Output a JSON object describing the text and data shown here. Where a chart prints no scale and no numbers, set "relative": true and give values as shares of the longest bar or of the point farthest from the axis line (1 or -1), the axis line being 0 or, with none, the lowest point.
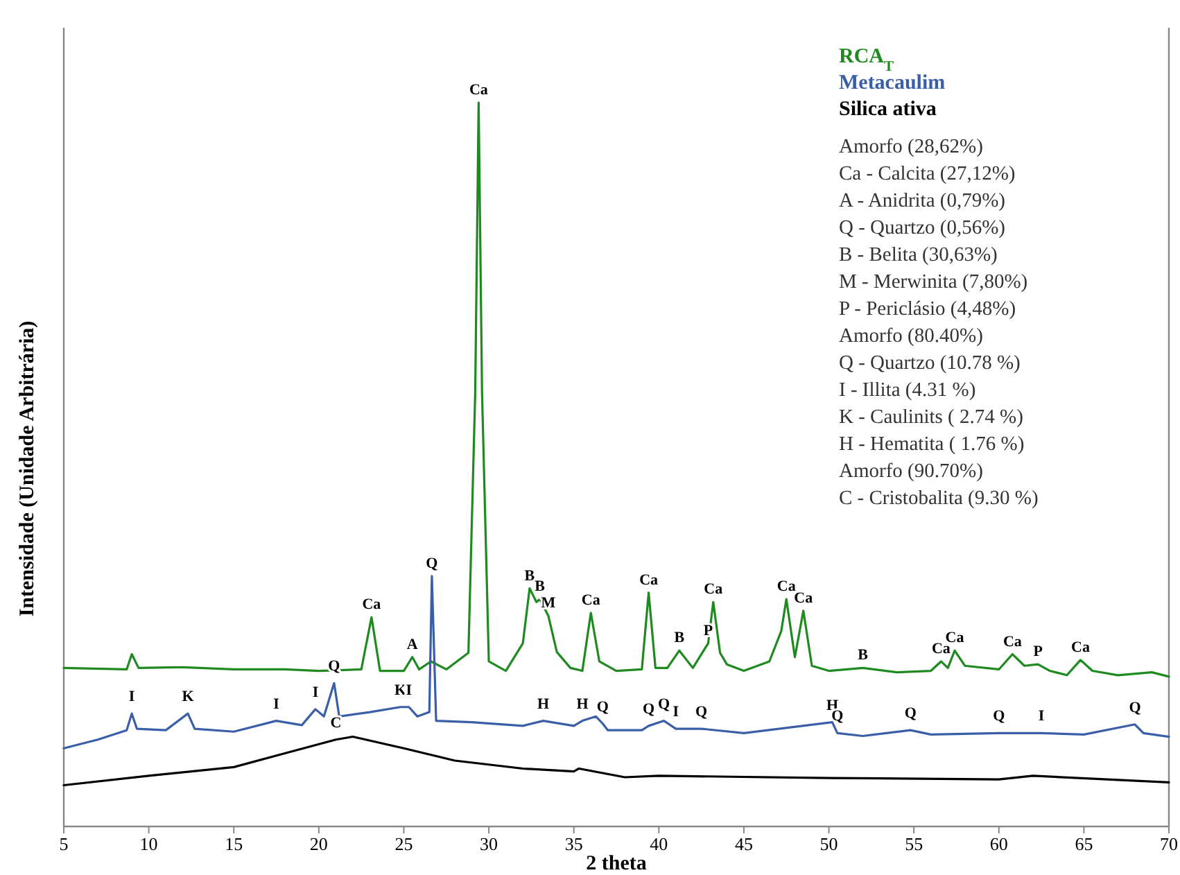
{
  "chart_data": {
    "type": "line",
    "relative": true,
    "xlabel": "2 theta",
    "ylabel": "Intensidade (Unidade Arbitrária)",
    "xlim": [
      5,
      70
    ],
    "xticks": [
      5,
      10,
      15,
      20,
      25,
      30,
      35,
      40,
      45,
      50,
      55,
      60,
      65,
      70
    ],
    "grid": false,
    "legend": "top right",
    "marker": "none",
    "line_style": "solid",
    "series": [
      {
        "name": "RCA$_{T}$",
        "color": "#1f8a1f",
        "x": [
          5,
          8.7,
          9.0,
          9.4,
          12,
          15,
          18,
          20,
          22.5,
          23.1,
          23.6,
          25,
          25.5,
          25.9,
          26.6,
          27.5,
          28.8,
          29.2,
          29.4,
          29.6,
          30,
          31,
          32,
          32.4,
          32.8,
          33,
          33.5,
          34,
          34.8,
          35.5,
          36.0,
          36.5,
          37.5,
          39,
          39.4,
          39.8,
          40.5,
          41.2,
          42,
          42.9,
          43.2,
          43.6,
          44,
          45,
          46.5,
          47.2,
          47.5,
          48,
          48.5,
          49,
          50,
          52,
          54,
          56,
          56.6,
          57,
          57.4,
          58,
          60,
          60.8,
          61.5,
          62.3,
          63,
          64,
          64.8,
          65.5,
          67,
          69,
          70
        ],
        "values": [
          0.219,
          0.217,
          0.238,
          0.219,
          0.22,
          0.217,
          0.217,
          0.215,
          0.217,
          0.289,
          0.215,
          0.215,
          0.234,
          0.217,
          0.228,
          0.217,
          0.24,
          0.6,
          1,
          0.6,
          0.228,
          0.215,
          0.253,
          0.329,
          0.31,
          0.314,
          0.291,
          0.241,
          0.219,
          0.215,
          0.295,
          0.228,
          0.215,
          0.217,
          0.323,
          0.219,
          0.219,
          0.243,
          0.219,
          0.253,
          0.31,
          0.24,
          0.224,
          0.215,
          0.228,
          0.27,
          0.314,
          0.234,
          0.298,
          0.222,
          0.215,
          0.219,
          0.213,
          0.215,
          0.228,
          0.219,
          0.243,
          0.222,
          0.217,
          0.238,
          0.222,
          0.224,
          0.215,
          0.209,
          0.23,
          0.215,
          0.209,
          0.213,
          0.207
        ]
      },
      {
        "name": "Metacaulim",
        "color": "#3a5fa8",
        "x": [
          5,
          7,
          8.7,
          9.0,
          9.3,
          11,
          12.3,
          12.7,
          15,
          17.5,
          19,
          19.8,
          20.3,
          20.9,
          21.2,
          23,
          24.8,
          25.3,
          25.8,
          26.5,
          26.65,
          26.9,
          29,
          32,
          33.2,
          35,
          35.5,
          36.3,
          36.7,
          37,
          39,
          39.4,
          40.3,
          41,
          42.5,
          45,
          50.2,
          50.5,
          52,
          54.8,
          56,
          60,
          62.5,
          65,
          68,
          68.5,
          70
        ],
        "values": [
          0.108,
          0.12,
          0.133,
          0.156,
          0.135,
          0.133,
          0.156,
          0.135,
          0.131,
          0.146,
          0.14,
          0.162,
          0.152,
          0.198,
          0.152,
          0.158,
          0.165,
          0.165,
          0.152,
          0.158,
          0.346,
          0.146,
          0.144,
          0.139,
          0.146,
          0.139,
          0.146,
          0.152,
          0.142,
          0.133,
          0.133,
          0.139,
          0.146,
          0.135,
          0.135,
          0.129,
          0.144,
          0.129,
          0.125,
          0.133,
          0.127,
          0.129,
          0.129,
          0.127,
          0.141,
          0.129,
          0.124
        ]
      },
      {
        "name": "Silica ativa",
        "color": "#000000",
        "x": [
          5,
          10,
          15,
          18,
          21,
          22,
          25,
          28,
          32,
          35,
          35.3,
          38,
          40,
          50,
          60,
          62,
          70
        ],
        "values": [
          0.057,
          0.07,
          0.082,
          0.101,
          0.12,
          0.124,
          0.108,
          0.091,
          0.08,
          0.076,
          0.08,
          0.068,
          0.07,
          0.067,
          0.065,
          0.07,
          0.061
        ]
      }
    ],
    "annotations": [
      "Amorfo (28,62%)",
      "Ca - Calcita (27,12%)",
      "A - Anidrita (0,79%)",
      "Q - Quartzo (0,56%)",
      "B - Belita (30,63%)",
      "M - Merwinita (7,80%)",
      "P - Periclásio (4,48%)",
      "Amorfo (80.40%)",
      "Q - Quartzo (10.78 %)",
      "I - Illita (4.31 %)",
      "K - Caulinits ( 2.74 %)",
      "H - Hematita ( 1.76 %)",
      "Amorfo (90.70%)",
      "C - Cristobalita (9.30 %)",
      {
        "text": "Ca",
        "x": 29.4,
        "y": 1
      },
      {
        "text": "Ca",
        "x": 23.1,
        "y": 0.289
      },
      {
        "text": "A",
        "x": 25.5,
        "y": 0.234
      },
      {
        "text": "Q",
        "x": 26.65,
        "y": 0.346
      },
      {
        "text": "B",
        "x": 32.4,
        "y": 0.329
      },
      {
        "text": "B",
        "x": 33,
        "y": 0.314
      },
      {
        "text": "M",
        "x": 33.5,
        "y": 0.291
      },
      {
        "text": "Ca",
        "x": 36.0,
        "y": 0.295
      },
      {
        "text": "Ca",
        "x": 39.4,
        "y": 0.323
      },
      {
        "text": "B",
        "x": 41.2,
        "y": 0.243
      },
      {
        "text": "P",
        "x": 42.9,
        "y": 0.253
      },
      {
        "text": "Ca",
        "x": 43.2,
        "y": 0.31
      },
      {
        "text": "Ca",
        "x": 47.5,
        "y": 0.314
      },
      {
        "text": "Ca",
        "x": 48.5,
        "y": 0.298
      },
      {
        "text": "B",
        "x": 52,
        "y": 0.219
      },
      {
        "text": "Ca",
        "x": 56.6,
        "y": 0.228
      },
      {
        "text": "Ca",
        "x": 57.4,
        "y": 0.243
      },
      {
        "text": "Ca",
        "x": 60.8,
        "y": 0.238
      },
      {
        "text": "P",
        "x": 62.3,
        "y": 0.224
      },
      {
        "text": "Ca",
        "x": 64.8,
        "y": 0.23
      },
      {
        "text": "I",
        "x": 9.0,
        "y": 0.156
      },
      {
        "text": "K",
        "x": 12.3,
        "y": 0.156
      },
      {
        "text": "I",
        "x": 17.5,
        "y": 0.146
      },
      {
        "text": "I",
        "x": 19.8,
        "y": 0.162
      },
      {
        "text": "Q",
        "x": 20.9,
        "y": 0.198
      },
      {
        "text": "K",
        "x": 24.8,
        "y": 0.165
      },
      {
        "text": "I",
        "x": 25.3,
        "y": 0.165
      },
      {
        "text": "H",
        "x": 33.2,
        "y": 0.146
      },
      {
        "text": "H",
        "x": 35.5,
        "y": 0.146
      },
      {
        "text": "Q",
        "x": 36.7,
        "y": 0.142
      },
      {
        "text": "Q",
        "x": 39.4,
        "y": 0.139
      },
      {
        "text": "Q",
        "x": 40.3,
        "y": 0.146
      },
      {
        "text": "I",
        "x": 41,
        "y": 0.135
      },
      {
        "text": "Q",
        "x": 42.5,
        "y": 0.135
      },
      {
        "text": "H",
        "x": 50.2,
        "y": 0.144
      },
      {
        "text": "Q",
        "x": 50.5,
        "y": 0.129
      },
      {
        "text": "Q",
        "x": 54.8,
        "y": 0.133
      },
      {
        "text": "Q",
        "x": 60,
        "y": 0.129
      },
      {
        "text": "I",
        "x": 62.5,
        "y": 0.129
      },
      {
        "text": "Q",
        "x": 68,
        "y": 0.141
      },
      {
        "text": "C",
        "x": 21,
        "y": 0.12
      }
    ]
  }
}
